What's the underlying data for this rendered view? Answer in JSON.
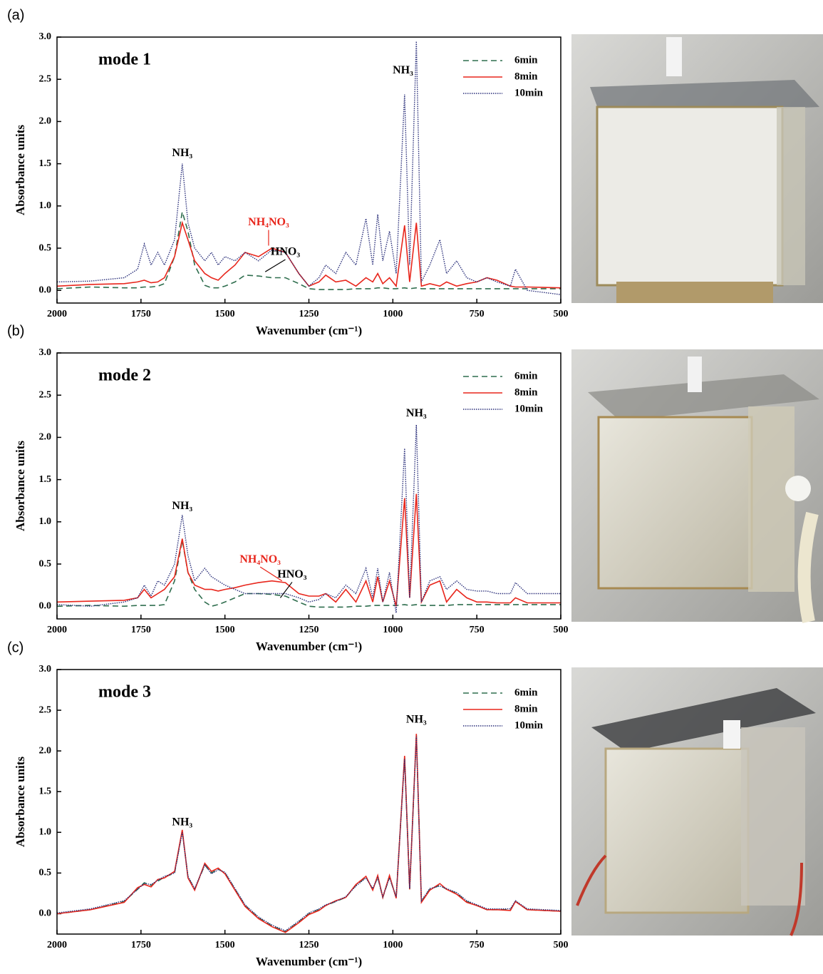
{
  "chart_data": [
    {
      "type": "line",
      "panel_label": "(a)",
      "title": "mode 1",
      "xlabel": "Wavenumber (cm⁻¹)",
      "ylabel": "Absorbance units",
      "xlim": [
        2000,
        500
      ],
      "ylim": [
        -0.15,
        3.0
      ],
      "xticks": [
        2000,
        1750,
        1500,
        1250,
        1000,
        750,
        500
      ],
      "yticks": [
        {
          "value": 0,
          "label": "0.0"
        },
        0.5,
        {
          "value": 1,
          "label": "1.0"
        },
        1.5,
        {
          "value": 2,
          "label": "2.0"
        },
        2.5,
        {
          "value": 3,
          "label": "3.0"
        }
      ],
      "legend": "upper right",
      "x": [
        2000,
        1900,
        1800,
        1760,
        1740,
        1720,
        1700,
        1680,
        1650,
        1627,
        1610,
        1590,
        1560,
        1540,
        1520,
        1500,
        1470,
        1440,
        1400,
        1360,
        1320,
        1280,
        1250,
        1220,
        1200,
        1170,
        1140,
        1110,
        1080,
        1060,
        1045,
        1030,
        1010,
        990,
        965,
        950,
        930,
        915,
        890,
        860,
        840,
        810,
        780,
        750,
        720,
        690,
        650,
        635,
        600,
        500
      ],
      "series": [
        {
          "name": "6min",
          "color": "#2f6e4e",
          "dash": "dashed",
          "values": [
            0.02,
            0.04,
            0.03,
            0.03,
            0.04,
            0.04,
            0.05,
            0.08,
            0.4,
            0.93,
            0.7,
            0.3,
            0.06,
            0.03,
            0.03,
            0.05,
            0.1,
            0.18,
            0.17,
            0.15,
            0.15,
            0.08,
            0.02,
            0.01,
            0.01,
            0.01,
            0.01,
            0.02,
            0.02,
            0.02,
            0.03,
            0.03,
            0.02,
            0.02,
            0.03,
            0.02,
            0.03,
            0.02,
            0.02,
            0.02,
            0.02,
            0.02,
            0.02,
            0.02,
            0.02,
            0.02,
            0.02,
            0.02,
            0.02,
            0.02
          ]
        },
        {
          "name": "8min",
          "color": "#e8261c",
          "dash": "solid",
          "values": [
            0.05,
            0.07,
            0.08,
            0.1,
            0.12,
            0.09,
            0.1,
            0.15,
            0.4,
            0.8,
            0.6,
            0.35,
            0.2,
            0.15,
            0.12,
            0.2,
            0.3,
            0.45,
            0.4,
            0.5,
            0.45,
            0.2,
            0.05,
            0.1,
            0.18,
            0.1,
            0.12,
            0.05,
            0.15,
            0.1,
            0.2,
            0.08,
            0.15,
            0.05,
            0.77,
            0.1,
            0.8,
            0.05,
            0.08,
            0.05,
            0.1,
            0.05,
            0.08,
            0.1,
            0.15,
            0.12,
            0.05,
            0.04,
            0.04,
            0.03
          ]
        },
        {
          "name": "10min",
          "color": "#2a2f7a",
          "dash": "dotted",
          "values": [
            0.1,
            0.11,
            0.15,
            0.25,
            0.55,
            0.3,
            0.45,
            0.3,
            0.6,
            1.5,
            0.8,
            0.5,
            0.35,
            0.45,
            0.3,
            0.4,
            0.35,
            0.45,
            0.35,
            0.48,
            0.45,
            0.2,
            0.05,
            0.15,
            0.3,
            0.2,
            0.45,
            0.3,
            0.85,
            0.3,
            0.9,
            0.35,
            0.7,
            0.2,
            2.32,
            0.3,
            2.95,
            0.1,
            0.3,
            0.6,
            0.2,
            0.35,
            0.15,
            0.1,
            0.15,
            0.1,
            0.05,
            0.25,
            0.0,
            -0.05
          ]
        }
      ],
      "annotations": [
        {
          "text": "NH₃",
          "color": "#000000"
        },
        {
          "text": "NH₃",
          "color": "#000000"
        },
        {
          "text": "NH₄NO₃",
          "color": "#e8261c"
        },
        {
          "text": "HNO₃",
          "color": "#000000"
        }
      ]
    },
    {
      "type": "line",
      "panel_label": "(b)",
      "title": "mode 2",
      "xlabel": "Wavenumber (cm⁻¹)",
      "ylabel": "Absorbance units",
      "xlim": [
        2000,
        500
      ],
      "ylim": [
        -0.15,
        3.0
      ],
      "xticks": [
        2000,
        1750,
        1500,
        1250,
        1000,
        750,
        500
      ],
      "yticks": [
        {
          "value": 0,
          "label": "0.0"
        },
        0.5,
        {
          "value": 1,
          "label": "1.0"
        },
        1.5,
        {
          "value": 2,
          "label": "2.0"
        },
        2.5,
        {
          "value": 3,
          "label": "3.0"
        }
      ],
      "legend": "upper right",
      "x": [
        2000,
        1900,
        1800,
        1760,
        1740,
        1720,
        1700,
        1680,
        1650,
        1627,
        1610,
        1590,
        1560,
        1540,
        1520,
        1500,
        1470,
        1440,
        1400,
        1360,
        1320,
        1280,
        1250,
        1220,
        1200,
        1170,
        1140,
        1110,
        1080,
        1060,
        1045,
        1030,
        1010,
        990,
        965,
        950,
        930,
        915,
        890,
        860,
        840,
        810,
        780,
        750,
        720,
        690,
        650,
        635,
        600,
        500
      ],
      "series": [
        {
          "name": "6min",
          "color": "#2f6e4e",
          "dash": "dashed",
          "values": [
            0.0,
            0.01,
            0.0,
            0.01,
            0.01,
            0.01,
            0.01,
            0.02,
            0.3,
            0.78,
            0.4,
            0.2,
            0.05,
            0.0,
            0.02,
            0.05,
            0.1,
            0.15,
            0.15,
            0.14,
            0.12,
            0.05,
            0.0,
            -0.01,
            -0.01,
            -0.01,
            -0.01,
            0.0,
            0.0,
            0.01,
            0.01,
            0.01,
            0.01,
            0.01,
            0.02,
            0.01,
            0.02,
            0.01,
            0.01,
            0.01,
            0.01,
            0.02,
            0.02,
            0.02,
            0.02,
            0.02,
            0.02,
            0.02,
            0.02,
            0.02
          ]
        },
        {
          "name": "8min",
          "color": "#e8261c",
          "dash": "solid",
          "values": [
            0.05,
            0.06,
            0.07,
            0.1,
            0.2,
            0.1,
            0.15,
            0.2,
            0.35,
            0.8,
            0.4,
            0.25,
            0.2,
            0.2,
            0.18,
            0.2,
            0.22,
            0.25,
            0.28,
            0.3,
            0.28,
            0.15,
            0.12,
            0.12,
            0.15,
            0.05,
            0.2,
            0.05,
            0.3,
            0.05,
            0.35,
            0.05,
            0.3,
            0.0,
            1.28,
            0.1,
            1.33,
            0.05,
            0.25,
            0.3,
            0.05,
            0.2,
            0.1,
            0.05,
            0.05,
            0.04,
            0.04,
            0.1,
            0.04,
            0.04
          ]
        },
        {
          "name": "10min",
          "color": "#2a2f7a",
          "dash": "dotted",
          "values": [
            0.02,
            0.0,
            0.05,
            0.1,
            0.25,
            0.12,
            0.3,
            0.25,
            0.5,
            1.08,
            0.6,
            0.3,
            0.45,
            0.35,
            0.3,
            0.25,
            0.2,
            0.15,
            0.15,
            0.15,
            0.15,
            0.1,
            0.05,
            0.08,
            0.15,
            0.1,
            0.25,
            0.15,
            0.45,
            0.1,
            0.45,
            0.05,
            0.4,
            -0.08,
            1.87,
            0.1,
            2.15,
            0.05,
            0.3,
            0.35,
            0.2,
            0.3,
            0.2,
            0.18,
            0.18,
            0.15,
            0.15,
            0.28,
            0.15,
            0.15
          ]
        }
      ],
      "annotations": [
        {
          "text": "NH₃",
          "color": "#000000"
        },
        {
          "text": "NH₃",
          "color": "#000000"
        },
        {
          "text": "NH₄NO₃",
          "color": "#e8261c"
        },
        {
          "text": "HNO₃",
          "color": "#000000"
        }
      ]
    },
    {
      "type": "line",
      "panel_label": "(c)",
      "title": "mode 3",
      "xlabel": "Wavenumber (cm⁻¹)",
      "ylabel": "Absorbance units",
      "xlim": [
        2000,
        500
      ],
      "ylim": [
        -0.25,
        3.0
      ],
      "xticks": [
        2000,
        1750,
        1500,
        1250,
        1000,
        750,
        500
      ],
      "yticks": [
        {
          "value": 0,
          "label": "0.0"
        },
        0.5,
        {
          "value": 1,
          "label": "1.0"
        },
        1.5,
        {
          "value": 2,
          "label": "2.0"
        },
        2.5,
        {
          "value": 3,
          "label": "3.0"
        }
      ],
      "legend": "upper right",
      "x": [
        2000,
        1900,
        1800,
        1760,
        1740,
        1720,
        1700,
        1680,
        1650,
        1627,
        1610,
        1590,
        1560,
        1540,
        1520,
        1500,
        1470,
        1440,
        1400,
        1360,
        1320,
        1280,
        1250,
        1220,
        1200,
        1170,
        1140,
        1110,
        1080,
        1060,
        1045,
        1030,
        1010,
        990,
        965,
        950,
        930,
        915,
        890,
        860,
        840,
        810,
        780,
        750,
        720,
        690,
        650,
        635,
        600,
        500
      ],
      "series": [
        {
          "name": "6min",
          "color": "#2f6e4e",
          "dash": "dashed",
          "values": [
            0.0,
            0.05,
            0.15,
            0.3,
            0.38,
            0.35,
            0.4,
            0.45,
            0.5,
            1.02,
            0.45,
            0.3,
            0.6,
            0.5,
            0.55,
            0.5,
            0.3,
            0.1,
            -0.05,
            -0.15,
            -0.22,
            -0.1,
            0.0,
            0.05,
            0.1,
            0.15,
            0.2,
            0.35,
            0.45,
            0.3,
            0.45,
            0.2,
            0.45,
            0.2,
            1.93,
            0.3,
            2.2,
            0.15,
            0.3,
            0.35,
            0.3,
            0.25,
            0.15,
            0.1,
            0.05,
            0.05,
            0.05,
            0.15,
            0.05,
            0.03
          ]
        },
        {
          "name": "8min",
          "color": "#e8261c",
          "dash": "solid",
          "values": [
            0.0,
            0.05,
            0.14,
            0.32,
            0.36,
            0.33,
            0.42,
            0.44,
            0.52,
            1.03,
            0.44,
            0.29,
            0.62,
            0.52,
            0.56,
            0.49,
            0.29,
            0.09,
            -0.06,
            -0.16,
            -0.23,
            -0.11,
            -0.01,
            0.04,
            0.1,
            0.16,
            0.2,
            0.36,
            0.46,
            0.29,
            0.47,
            0.2,
            0.47,
            0.19,
            1.94,
            0.3,
            2.21,
            0.14,
            0.29,
            0.37,
            0.3,
            0.24,
            0.14,
            0.1,
            0.05,
            0.05,
            0.04,
            0.15,
            0.05,
            0.03
          ]
        },
        {
          "name": "10min",
          "color": "#2a2f7a",
          "dash": "dotted",
          "values": [
            0.01,
            0.06,
            0.16,
            0.3,
            0.37,
            0.36,
            0.41,
            0.46,
            0.5,
            1.0,
            0.46,
            0.31,
            0.6,
            0.49,
            0.54,
            0.51,
            0.31,
            0.11,
            -0.04,
            -0.14,
            -0.21,
            -0.09,
            0.01,
            0.06,
            0.11,
            0.15,
            0.21,
            0.34,
            0.44,
            0.31,
            0.44,
            0.21,
            0.44,
            0.21,
            1.9,
            0.31,
            2.18,
            0.16,
            0.31,
            0.34,
            0.31,
            0.26,
            0.16,
            0.11,
            0.06,
            0.06,
            0.06,
            0.16,
            0.06,
            0.04
          ]
        }
      ],
      "annotations": [
        {
          "text": "NH₃",
          "color": "#000000"
        },
        {
          "text": "NH₃",
          "color": "#000000"
        }
      ]
    }
  ]
}
